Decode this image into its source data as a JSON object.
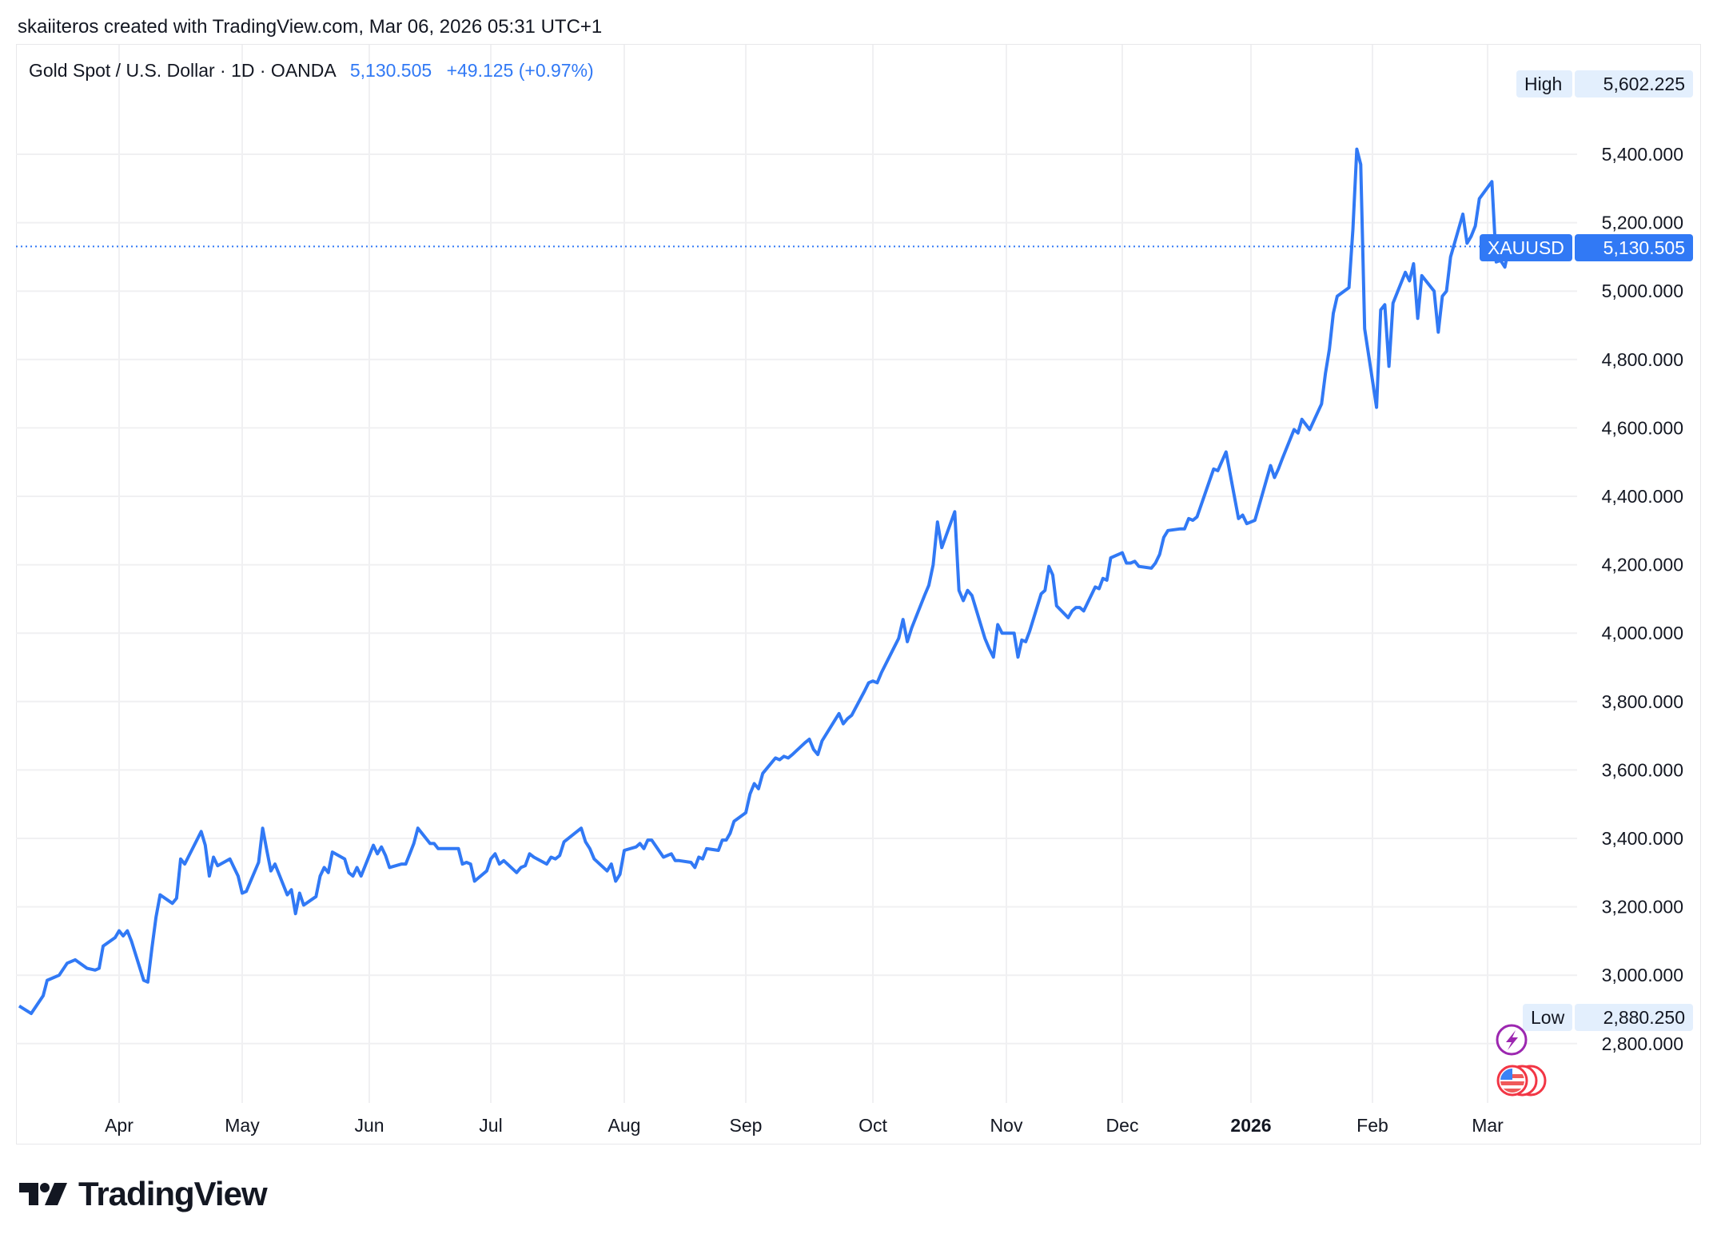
{
  "caption": "skaiiteros created with TradingView.com, Mar 06, 2026 05:31 UTC+1",
  "legend": {
    "symbol": "Gold Spot / U.S. Dollar · 1D · OANDA",
    "last": "5,130.505",
    "change": "+49.125 (+0.97%)"
  },
  "tags": {
    "high_label": "High",
    "high_value": "5,602.225",
    "ticker_label": "XAUUSD",
    "ticker_value": "5,130.505",
    "low_label": "Low",
    "low_value": "2,880.250"
  },
  "logo": "TradingView",
  "icons": [
    "lightning-event-icon",
    "us-flag-event-icon"
  ],
  "colors": {
    "line": "#3179f5",
    "grid": "#f0f0f2",
    "tag_light": "#e3effd",
    "tag_dark": "#3179f5",
    "event_purple": "#9c27b0",
    "event_red": "#f23645"
  },
  "chart_data": {
    "type": "line",
    "title": "Gold Spot / U.S. Dollar · 1D · OANDA",
    "ylim": [
      2640,
      5700
    ],
    "grid": true,
    "yticks": [
      "5,400.000",
      "5,200.000",
      "5,000.000",
      "4,800.000",
      "4,600.000",
      "4,400.000",
      "4,200.000",
      "4,000.000",
      "3,800.000",
      "3,600.000",
      "3,400.000",
      "3,200.000",
      "3,000.000",
      "2,800.000"
    ],
    "ytick_values": [
      5400,
      5200,
      5000,
      4800,
      4600,
      4400,
      4200,
      4000,
      3800,
      3600,
      3400,
      3200,
      3000,
      2800
    ],
    "xticks": [
      {
        "label": "Apr",
        "date": "2025-04-01"
      },
      {
        "label": "May",
        "date": "2025-05-01"
      },
      {
        "label": "Jun",
        "date": "2025-06-01"
      },
      {
        "label": "Jul",
        "date": "2025-07-01"
      },
      {
        "label": "Aug",
        "date": "2025-08-01"
      },
      {
        "label": "Sep",
        "date": "2025-09-01"
      },
      {
        "label": "Oct",
        "date": "2025-10-01"
      },
      {
        "label": "Nov",
        "date": "2025-11-01"
      },
      {
        "label": "Dec",
        "date": "2025-12-01"
      },
      {
        "label": "2026",
        "date": "2026-01-01",
        "bold": true
      },
      {
        "label": "Feb",
        "date": "2026-02-01"
      },
      {
        "label": "Mar",
        "date": "2026-03-01"
      }
    ],
    "last_price": 5130.505,
    "high": 5602.225,
    "low": 2880.25,
    "series": [
      {
        "points": [
          [
            "2025-03-07",
            2910
          ],
          [
            "2025-03-10",
            2888
          ],
          [
            "2025-03-13",
            2940
          ],
          [
            "2025-03-14",
            2985
          ],
          [
            "2025-03-17",
            3000
          ],
          [
            "2025-03-19",
            3035
          ],
          [
            "2025-03-21",
            3045
          ],
          [
            "2025-03-24",
            3020
          ],
          [
            "2025-03-26",
            3015
          ],
          [
            "2025-03-27",
            3020
          ],
          [
            "2025-03-28",
            3085
          ],
          [
            "2025-03-31",
            3110
          ],
          [
            "2025-04-01",
            3130
          ],
          [
            "2025-04-02",
            3115
          ],
          [
            "2025-04-03",
            3130
          ],
          [
            "2025-04-04",
            3100
          ],
          [
            "2025-04-07",
            2985
          ],
          [
            "2025-04-08",
            2980
          ],
          [
            "2025-04-09",
            3080
          ],
          [
            "2025-04-10",
            3170
          ],
          [
            "2025-04-11",
            3235
          ],
          [
            "2025-04-14",
            3210
          ],
          [
            "2025-04-15",
            3225
          ],
          [
            "2025-04-16",
            3340
          ],
          [
            "2025-04-17",
            3325
          ],
          [
            "2025-04-21",
            3420
          ],
          [
            "2025-04-22",
            3380
          ],
          [
            "2025-04-23",
            3290
          ],
          [
            "2025-04-24",
            3345
          ],
          [
            "2025-04-25",
            3320
          ],
          [
            "2025-04-28",
            3340
          ],
          [
            "2025-04-29",
            3315
          ],
          [
            "2025-04-30",
            3290
          ],
          [
            "2025-05-01",
            3240
          ],
          [
            "2025-05-02",
            3245
          ],
          [
            "2025-05-05",
            3330
          ],
          [
            "2025-05-06",
            3430
          ],
          [
            "2025-05-07",
            3365
          ],
          [
            "2025-05-08",
            3305
          ],
          [
            "2025-05-09",
            3325
          ],
          [
            "2025-05-12",
            3235
          ],
          [
            "2025-05-13",
            3250
          ],
          [
            "2025-05-14",
            3180
          ],
          [
            "2025-05-15",
            3240
          ],
          [
            "2025-05-16",
            3205
          ],
          [
            "2025-05-19",
            3230
          ],
          [
            "2025-05-20",
            3290
          ],
          [
            "2025-05-21",
            3315
          ],
          [
            "2025-05-22",
            3300
          ],
          [
            "2025-05-23",
            3360
          ],
          [
            "2025-05-26",
            3340
          ],
          [
            "2025-05-27",
            3300
          ],
          [
            "2025-05-28",
            3290
          ],
          [
            "2025-05-29",
            3315
          ],
          [
            "2025-05-30",
            3290
          ],
          [
            "2025-06-02",
            3380
          ],
          [
            "2025-06-03",
            3355
          ],
          [
            "2025-06-04",
            3375
          ],
          [
            "2025-06-05",
            3350
          ],
          [
            "2025-06-06",
            3315
          ],
          [
            "2025-06-09",
            3325
          ],
          [
            "2025-06-10",
            3325
          ],
          [
            "2025-06-11",
            3355
          ],
          [
            "2025-06-12",
            3385
          ],
          [
            "2025-06-13",
            3430
          ],
          [
            "2025-06-16",
            3385
          ],
          [
            "2025-06-17",
            3385
          ],
          [
            "2025-06-18",
            3370
          ],
          [
            "2025-06-19",
            3370
          ],
          [
            "2025-06-20",
            3370
          ],
          [
            "2025-06-23",
            3370
          ],
          [
            "2025-06-24",
            3325
          ],
          [
            "2025-06-25",
            3330
          ],
          [
            "2025-06-26",
            3325
          ],
          [
            "2025-06-27",
            3275
          ],
          [
            "2025-06-30",
            3305
          ],
          [
            "2025-07-01",
            3340
          ],
          [
            "2025-07-02",
            3355
          ],
          [
            "2025-07-03",
            3325
          ],
          [
            "2025-07-04",
            3335
          ],
          [
            "2025-07-07",
            3300
          ],
          [
            "2025-07-08",
            3315
          ],
          [
            "2025-07-09",
            3320
          ],
          [
            "2025-07-10",
            3355
          ],
          [
            "2025-07-11",
            3345
          ],
          [
            "2025-07-14",
            3325
          ],
          [
            "2025-07-15",
            3345
          ],
          [
            "2025-07-16",
            3340
          ],
          [
            "2025-07-17",
            3350
          ],
          [
            "2025-07-18",
            3390
          ],
          [
            "2025-07-22",
            3430
          ],
          [
            "2025-07-23",
            3390
          ],
          [
            "2025-07-24",
            3370
          ],
          [
            "2025-07-25",
            3340
          ],
          [
            "2025-07-28",
            3305
          ],
          [
            "2025-07-29",
            3325
          ],
          [
            "2025-07-30",
            3275
          ],
          [
            "2025-07-31",
            3295
          ],
          [
            "2025-08-01",
            3365
          ],
          [
            "2025-08-04",
            3375
          ],
          [
            "2025-08-05",
            3385
          ],
          [
            "2025-08-06",
            3370
          ],
          [
            "2025-08-07",
            3395
          ],
          [
            "2025-08-08",
            3395
          ],
          [
            "2025-08-11",
            3345
          ],
          [
            "2025-08-12",
            3350
          ],
          [
            "2025-08-13",
            3355
          ],
          [
            "2025-08-14",
            3335
          ],
          [
            "2025-08-15",
            3335
          ],
          [
            "2025-08-18",
            3330
          ],
          [
            "2025-08-19",
            3315
          ],
          [
            "2025-08-20",
            3345
          ],
          [
            "2025-08-21",
            3340
          ],
          [
            "2025-08-22",
            3370
          ],
          [
            "2025-08-25",
            3365
          ],
          [
            "2025-08-26",
            3395
          ],
          [
            "2025-08-27",
            3395
          ],
          [
            "2025-08-28",
            3415
          ],
          [
            "2025-08-29",
            3450
          ],
          [
            "2025-09-01",
            3475
          ],
          [
            "2025-09-02",
            3530
          ],
          [
            "2025-09-03",
            3560
          ],
          [
            "2025-09-04",
            3545
          ],
          [
            "2025-09-05",
            3590
          ],
          [
            "2025-09-08",
            3635
          ],
          [
            "2025-09-09",
            3630
          ],
          [
            "2025-09-10",
            3640
          ],
          [
            "2025-09-11",
            3635
          ],
          [
            "2025-09-12",
            3645
          ],
          [
            "2025-09-15",
            3680
          ],
          [
            "2025-09-16",
            3690
          ],
          [
            "2025-09-17",
            3660
          ],
          [
            "2025-09-18",
            3645
          ],
          [
            "2025-09-19",
            3685
          ],
          [
            "2025-09-22",
            3745
          ],
          [
            "2025-09-23",
            3765
          ],
          [
            "2025-09-24",
            3735
          ],
          [
            "2025-09-25",
            3750
          ],
          [
            "2025-09-26",
            3760
          ],
          [
            "2025-09-29",
            3830
          ],
          [
            "2025-09-30",
            3855
          ],
          [
            "2025-10-01",
            3860
          ],
          [
            "2025-10-02",
            3855
          ],
          [
            "2025-10-03",
            3885
          ],
          [
            "2025-10-06",
            3960
          ],
          [
            "2025-10-07",
            3985
          ],
          [
            "2025-10-08",
            4040
          ],
          [
            "2025-10-09",
            3975
          ],
          [
            "2025-10-10",
            4015
          ],
          [
            "2025-10-13",
            4110
          ],
          [
            "2025-10-14",
            4140
          ],
          [
            "2025-10-15",
            4200
          ],
          [
            "2025-10-16",
            4325
          ],
          [
            "2025-10-17",
            4250
          ],
          [
            "2025-10-20",
            4355
          ],
          [
            "2025-10-21",
            4125
          ],
          [
            "2025-10-22",
            4095
          ],
          [
            "2025-10-23",
            4125
          ],
          [
            "2025-10-24",
            4110
          ],
          [
            "2025-10-27",
            3985
          ],
          [
            "2025-10-28",
            3955
          ],
          [
            "2025-10-29",
            3930
          ],
          [
            "2025-10-30",
            4025
          ],
          [
            "2025-10-31",
            4000
          ],
          [
            "2025-11-03",
            4000
          ],
          [
            "2025-11-04",
            3930
          ],
          [
            "2025-11-05",
            3980
          ],
          [
            "2025-11-06",
            3975
          ],
          [
            "2025-11-07",
            4005
          ],
          [
            "2025-11-10",
            4115
          ],
          [
            "2025-11-11",
            4125
          ],
          [
            "2025-11-12",
            4195
          ],
          [
            "2025-11-13",
            4170
          ],
          [
            "2025-11-14",
            4080
          ],
          [
            "2025-11-17",
            4045
          ],
          [
            "2025-11-18",
            4065
          ],
          [
            "2025-11-19",
            4075
          ],
          [
            "2025-11-20",
            4075
          ],
          [
            "2025-11-21",
            4065
          ],
          [
            "2025-11-24",
            4135
          ],
          [
            "2025-11-25",
            4130
          ],
          [
            "2025-11-26",
            4160
          ],
          [
            "2025-11-27",
            4155
          ],
          [
            "2025-11-28",
            4220
          ],
          [
            "2025-12-01",
            4235
          ],
          [
            "2025-12-02",
            4205
          ],
          [
            "2025-12-03",
            4205
          ],
          [
            "2025-12-04",
            4210
          ],
          [
            "2025-12-05",
            4195
          ],
          [
            "2025-12-08",
            4190
          ],
          [
            "2025-12-09",
            4205
          ],
          [
            "2025-12-10",
            4230
          ],
          [
            "2025-12-11",
            4280
          ],
          [
            "2025-12-12",
            4300
          ],
          [
            "2025-12-15",
            4305
          ],
          [
            "2025-12-16",
            4305
          ],
          [
            "2025-12-17",
            4335
          ],
          [
            "2025-12-18",
            4330
          ],
          [
            "2025-12-19",
            4340
          ],
          [
            "2025-12-22",
            4445
          ],
          [
            "2025-12-23",
            4480
          ],
          [
            "2025-12-24",
            4475
          ],
          [
            "2025-12-26",
            4530
          ],
          [
            "2025-12-29",
            4335
          ],
          [
            "2025-12-30",
            4345
          ],
          [
            "2025-12-31",
            4320
          ],
          [
            "2026-01-02",
            4330
          ],
          [
            "2026-01-05",
            4450
          ],
          [
            "2026-01-06",
            4490
          ],
          [
            "2026-01-07",
            4455
          ],
          [
            "2026-01-08",
            4480
          ],
          [
            "2026-01-09",
            4510
          ],
          [
            "2026-01-12",
            4595
          ],
          [
            "2026-01-13",
            4585
          ],
          [
            "2026-01-14",
            4625
          ],
          [
            "2026-01-15",
            4610
          ],
          [
            "2026-01-16",
            4595
          ],
          [
            "2026-01-19",
            4670
          ],
          [
            "2026-01-20",
            4760
          ],
          [
            "2026-01-21",
            4830
          ],
          [
            "2026-01-22",
            4935
          ],
          [
            "2026-01-23",
            4985
          ],
          [
            "2026-01-26",
            5010
          ],
          [
            "2026-01-27",
            5180
          ],
          [
            "2026-01-28",
            5415
          ],
          [
            "2026-01-29",
            5370
          ],
          [
            "2026-01-30",
            4890
          ],
          [
            "2026-02-02",
            4660
          ],
          [
            "2026-02-03",
            4945
          ],
          [
            "2026-02-04",
            4960
          ],
          [
            "2026-02-05",
            4780
          ],
          [
            "2026-02-06",
            4965
          ],
          [
            "2026-02-09",
            5055
          ],
          [
            "2026-02-10",
            5030
          ],
          [
            "2026-02-11",
            5080
          ],
          [
            "2026-02-12",
            4920
          ],
          [
            "2026-02-13",
            5045
          ],
          [
            "2026-02-16",
            5000
          ],
          [
            "2026-02-17",
            4880
          ],
          [
            "2026-02-18",
            4985
          ],
          [
            "2026-02-19",
            5000
          ],
          [
            "2026-02-20",
            5100
          ],
          [
            "2026-02-23",
            5225
          ],
          [
            "2026-02-24",
            5140
          ],
          [
            "2026-02-25",
            5160
          ],
          [
            "2026-02-26",
            5190
          ],
          [
            "2026-02-27",
            5270
          ],
          [
            "2026-03-02",
            5320
          ],
          [
            "2026-03-03",
            5085
          ],
          [
            "2026-03-04",
            5090
          ],
          [
            "2026-03-05",
            5070
          ],
          [
            "2026-03-06",
            5130.505
          ]
        ]
      }
    ]
  }
}
